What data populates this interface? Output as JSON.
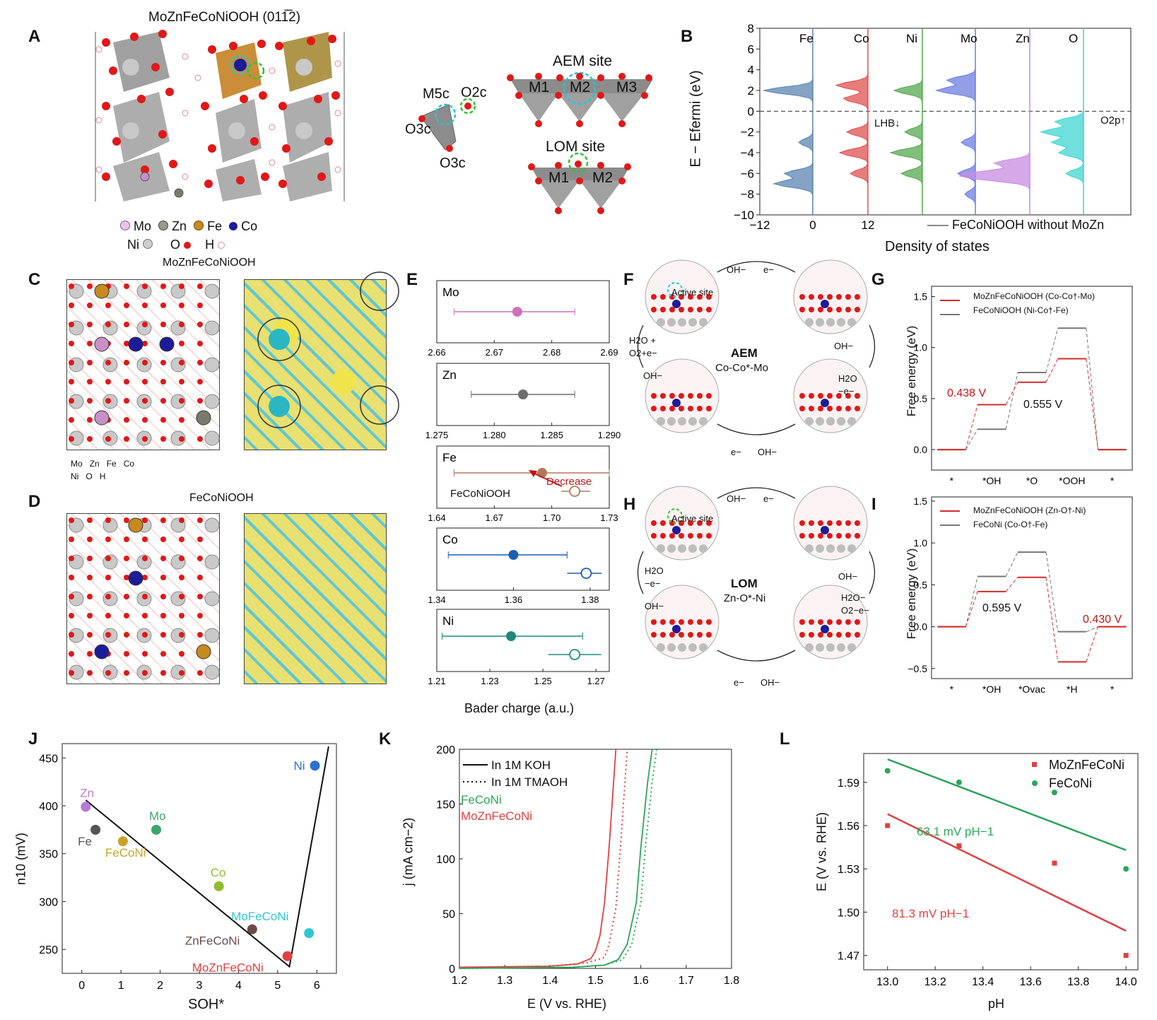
{
  "panels": [
    "A",
    "B",
    "C",
    "D",
    "E",
    "F",
    "G",
    "H",
    "I",
    "J",
    "K",
    "L"
  ],
  "colors": {
    "mo": "#c98fc9",
    "zn": "#7a7a6e",
    "fe": "#c88a1e",
    "co": "#1c1c9a",
    "ni": "#b5b5b5",
    "o": "#e01818",
    "h": "#f0c8c8",
    "red": "#d62b2b",
    "green": "#2aa55a",
    "gray": "#777777"
  },
  "a": {
    "title": "MoZnFeCoNiOOH (011̅2)",
    "legend": {
      "mo": "Mo",
      "zn": "Zn",
      "fe": "Fe",
      "co": "Co",
      "ni": "Ni",
      "o": "O",
      "h": "H"
    },
    "site_labels": {
      "m5c": "M5c",
      "o2c": "O2c",
      "o3c_left": "O3c",
      "o3c_bottom": "O3c"
    },
    "aem_title": "AEM site",
    "aem_metals": [
      "M1",
      "M2",
      "M3"
    ],
    "lom_title": "LOM site",
    "lom_metals": [
      "M1",
      "M2"
    ]
  },
  "b": {
    "ylabel": "E − Efermi (eV)",
    "xlabel": "Density of states",
    "yticks": [
      "8",
      "6",
      "4",
      "2",
      "0",
      "−2",
      "−4",
      "−6",
      "−8",
      "−10"
    ],
    "xticks": [
      "−12",
      "0",
      "12"
    ],
    "elements": [
      "Fe",
      "Co",
      "Ni",
      "Mo",
      "Zn",
      "O"
    ],
    "lhb": "LHB↓",
    "o2p": "O2p↑",
    "legend": "FeCoNiOOH without MoZn"
  },
  "c": {
    "title": "MoZnFeCoNiOOH",
    "legend": {
      "mo": "Mo",
      "zn": "Zn",
      "fe": "Fe",
      "co": "Co",
      "ni": "Ni",
      "o": "O",
      "h": "H"
    }
  },
  "d": {
    "title": "FeCoNiOOH"
  },
  "e": {
    "xlabel": "Bader charge (a.u.)",
    "subplots": [
      {
        "element": "Mo",
        "ticks": [
          "2.66",
          "2.67",
          "2.68",
          "2.69"
        ],
        "range": [
          2.66,
          2.69
        ],
        "doped": {
          "value": 2.674,
          "err": [
            2.663,
            2.684
          ]
        },
        "color": "#d16fbd"
      },
      {
        "element": "Zn",
        "ticks": [
          "1.275",
          "1.280",
          "1.285",
          "1.290"
        ],
        "range": [
          1.275,
          1.29
        ],
        "doped": {
          "value": 1.2825,
          "err": [
            1.278,
            1.287
          ]
        },
        "color": "#6e6e6e"
      },
      {
        "element": "Fe",
        "ticks": [
          "1.64",
          "1.67",
          "1.70",
          "1.73"
        ],
        "range": [
          1.64,
          1.73
        ],
        "doped": {
          "value": 1.695,
          "err": [
            1.649,
            1.73
          ]
        },
        "ref": {
          "value": 1.712,
          "err": [
            1.705,
            1.72
          ]
        },
        "color": "#b07a5a"
      },
      {
        "element": "Co",
        "ticks": [
          "1.34",
          "1.36",
          "1.38"
        ],
        "range": [
          1.34,
          1.385
        ],
        "doped": {
          "value": 1.36,
          "err": [
            1.343,
            1.374
          ]
        },
        "ref": {
          "value": 1.379,
          "err": [
            1.374,
            1.383
          ]
        },
        "color": "#1a5fb4"
      },
      {
        "element": "Ni",
        "ticks": [
          "1.21",
          "1.23",
          "1.25",
          "1.27"
        ],
        "range": [
          1.21,
          1.275
        ],
        "doped": {
          "value": 1.238,
          "err": [
            1.212,
            1.265
          ]
        },
        "ref": {
          "value": 1.262,
          "err": [
            1.252,
            1.272
          ]
        },
        "color": "#1e8a7a"
      }
    ],
    "ref_label": "FeCoNiOOH",
    "decrease_label": "Decrease"
  },
  "f": {
    "active_site": "Active site",
    "center_title": "AEM",
    "center_sub": "Co-Co*-Mo",
    "labels": {
      "top_oh": "OH−",
      "top_e": "e−",
      "right_oh": "OH−",
      "right_h2o": "H2O",
      "right_e": "−e−",
      "bottom_e": "e−",
      "bottom_oh": "OH−",
      "left_h2o": "H2O +",
      "left_o2": "O2+e−",
      "left_oh": "OH−"
    }
  },
  "g": {
    "ylabel": "Free energy (eV)",
    "yticks": [
      "1.5",
      "1.0",
      "0.5",
      "0.0"
    ],
    "xcats": [
      "*",
      "*OH",
      "*O",
      "*OOH",
      "*"
    ],
    "legend": [
      "MoZnFeCoNiOOH (Co-Co†-Mo)",
      "FeCoNiOOH (Ni-Co†-Fe)"
    ],
    "series_red": [
      0.0,
      0.44,
      0.66,
      0.89,
      0.0
    ],
    "series_gray": [
      0.0,
      0.2,
      0.755,
      1.19,
      0.0
    ],
    "barrier_red": "0.438 V",
    "barrier_gray": "0.555 V"
  },
  "h": {
    "active_site": "Active site",
    "center_title": "LOM",
    "center_sub": "Zn-O*-Ni",
    "labels": {
      "top_oh": "OH−",
      "top_e": "e−",
      "right_oh": "OH−",
      "right_h2o": "H2O−",
      "right_o2": "O2−e−",
      "bottom_e": "e−",
      "bottom_oh": "OH−",
      "left_h2o": "H2O",
      "left_e": "−e−",
      "left_oh": "OH−"
    }
  },
  "i": {
    "ylabel": "Free energy (eV)",
    "yticks": [
      "1.5",
      "1.0",
      "0.5",
      "0.0",
      "−0.5"
    ],
    "xcats": [
      "*",
      "*OH",
      "*Ovac",
      "*H",
      "*"
    ],
    "legend": [
      "MoZnFeCoNiOOH (Zn-O†-Ni)",
      "FeCoNi (Co-O†-Fe)"
    ],
    "series_red": [
      0.0,
      0.42,
      0.59,
      -0.42,
      0.0
    ],
    "series_gray": [
      0.0,
      0.6,
      0.89,
      -0.06,
      0.0
    ],
    "barrier_gray": "0.595 V",
    "barrier_red": "0.430 V"
  },
  "chart_data": [
    {
      "id": "J",
      "type": "scatter",
      "xlabel": "SOH*",
      "ylabel": "n10 (mV)",
      "xlim": [
        -0.5,
        6.5
      ],
      "ylim": [
        225,
        465
      ],
      "xticks": [
        "0",
        "1",
        "2",
        "3",
        "4",
        "5",
        "6"
      ],
      "yticks": [
        "450",
        "400",
        "350",
        "300",
        "250"
      ],
      "points": [
        {
          "label": "Zn",
          "x": 0.1,
          "y": 399,
          "color": "#b57bd6",
          "marker": "diamond"
        },
        {
          "label": "Fe",
          "x": 0.35,
          "y": 375,
          "color": "#555555",
          "marker": "square"
        },
        {
          "label": "FeCoNi",
          "x": 1.05,
          "y": 363,
          "color": "#c9a227",
          "marker": "triangle-left"
        },
        {
          "label": "Mo",
          "x": 1.9,
          "y": 375,
          "color": "#3aa66a",
          "marker": "triangle-down"
        },
        {
          "label": "Co",
          "x": 3.5,
          "y": 316,
          "color": "#8fbc2a",
          "marker": "circle"
        },
        {
          "label": "MoFeCoNi",
          "x": 5.8,
          "y": 267,
          "color": "#2fc6d2",
          "marker": "triangle-right"
        },
        {
          "label": "ZnFeCoNi",
          "x": 4.35,
          "y": 271,
          "color": "#6b4a4a",
          "marker": "hexagon"
        },
        {
          "label": "MoZnFeCoNi",
          "x": 5.25,
          "y": 243,
          "color": "#e04040",
          "marker": "star"
        },
        {
          "label": "Ni",
          "x": 5.95,
          "y": 442,
          "color": "#2f6fd0",
          "marker": "triangle-up"
        }
      ],
      "fit_line": [
        [
          0.1,
          406
        ],
        [
          5.3,
          232
        ],
        [
          6.3,
          462
        ]
      ]
    },
    {
      "id": "K",
      "type": "line",
      "xlabel": "E (V vs. RHE)",
      "ylabel": "j (mA cm−2)",
      "xlim": [
        1.2,
        1.8
      ],
      "ylim": [
        0,
        200
      ],
      "xticks": [
        "1.2",
        "1.3",
        "1.4",
        "1.5",
        "1.6",
        "1.7",
        "1.8"
      ],
      "yticks": [
        "200",
        "150",
        "100",
        "50",
        "0"
      ],
      "legend": [
        "In 1M KOH",
        "In 1M TMAOH"
      ],
      "series_labels": [
        "FeCoNi",
        "MoZnFeCoNi"
      ],
      "series": [
        {
          "name": "MoZnFeCoNi KOH",
          "color": "#e04040",
          "style": "solid",
          "x": [
            1.2,
            1.4,
            1.46,
            1.49,
            1.5,
            1.51,
            1.52,
            1.53,
            1.54,
            1.545
          ],
          "y": [
            1,
            2,
            4,
            9,
            16,
            30,
            60,
            110,
            170,
            200
          ]
        },
        {
          "name": "MoZnFeCoNi TMAOH",
          "color": "#e04040",
          "style": "dotted",
          "x": [
            1.2,
            1.4,
            1.48,
            1.52,
            1.53,
            1.545,
            1.555,
            1.565,
            1.57
          ],
          "y": [
            1,
            2,
            5,
            10,
            22,
            55,
            110,
            170,
            200
          ]
        },
        {
          "name": "FeCoNi KOH",
          "color": "#2aa55a",
          "style": "solid",
          "x": [
            1.2,
            1.45,
            1.52,
            1.55,
            1.57,
            1.59,
            1.6,
            1.615,
            1.625
          ],
          "y": [
            0,
            1,
            3,
            8,
            22,
            60,
            110,
            170,
            200
          ]
        },
        {
          "name": "FeCoNi TMAOH",
          "color": "#2aa55a",
          "style": "dotted",
          "x": [
            1.2,
            1.45,
            1.52,
            1.56,
            1.58,
            1.6,
            1.61,
            1.625,
            1.635
          ],
          "y": [
            0,
            1,
            3,
            8,
            22,
            60,
            110,
            170,
            200
          ]
        }
      ]
    },
    {
      "id": "L",
      "type": "scatter",
      "xlabel": "pH",
      "ylabel": "E (V vs. RHE)",
      "xlim": [
        12.9,
        14.05
      ],
      "ylim": [
        1.46,
        1.61
      ],
      "xticks": [
        "13.0",
        "13.2",
        "13.4",
        "13.6",
        "13.8",
        "14.0"
      ],
      "yticks": [
        "1.59",
        "1.56",
        "1.53",
        "1.50",
        "1.47"
      ],
      "series": [
        {
          "name": "MoZnFeCoNi",
          "color": "#e04040",
          "marker": "square",
          "x": [
            13.0,
            13.3,
            13.7,
            14.0
          ],
          "y": [
            1.56,
            1.546,
            1.534,
            1.47
          ],
          "fit": [
            [
              13.0,
              1.568
            ],
            [
              14.0,
              1.487
            ]
          ],
          "slope_label": "81.3 mV pH−1"
        },
        {
          "name": "FeCoNi",
          "color": "#2aa55a",
          "marker": "circle",
          "x": [
            13.0,
            13.3,
            13.7,
            14.0
          ],
          "y": [
            1.598,
            1.59,
            1.583,
            1.53
          ],
          "fit": [
            [
              13.0,
              1.606
            ],
            [
              14.0,
              1.543
            ]
          ],
          "slope_label": "63.1 mV pH−1"
        }
      ]
    }
  ]
}
